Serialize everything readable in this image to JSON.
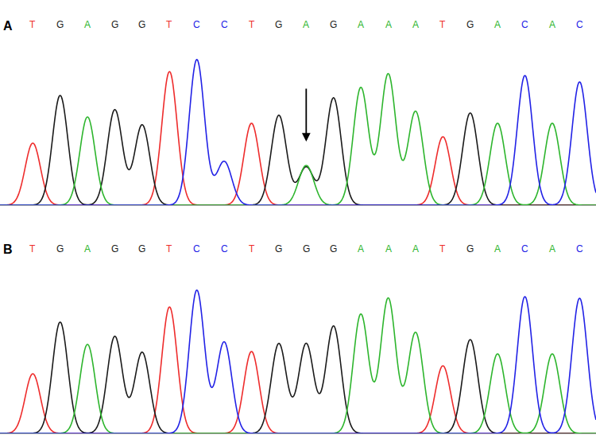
{
  "chart_data": [
    {
      "type": "line",
      "title": "A",
      "sequence": [
        "T",
        "G",
        "A",
        "G",
        "G",
        "T",
        "C",
        "C",
        "T",
        "G",
        "A",
        "G",
        "A",
        "A",
        "A",
        "T",
        "G",
        "A",
        "C",
        "A",
        "C"
      ],
      "marked_position": 11,
      "xlim": [
        -0.2,
        21.6
      ],
      "ylim": [
        0,
        200
      ],
      "tick_labels": false,
      "grid": false,
      "series": [
        {
          "name": "T",
          "color": "#ee2c2c",
          "x": [
            1,
            6,
            9,
            16
          ],
          "values": [
            78,
            168,
            103,
            86
          ]
        },
        {
          "name": "G",
          "color": "#1a1a1a",
          "x": [
            2,
            4,
            5,
            10,
            11,
            12,
            17
          ],
          "values": [
            138,
            120,
            101,
            113,
            48,
            135,
            116
          ]
        },
        {
          "name": "A",
          "color": "#2db52d",
          "x": [
            3,
            11,
            13,
            14,
            15,
            18,
            20
          ],
          "values": [
            111,
            50,
            148,
            165,
            118,
            103,
            103
          ]
        },
        {
          "name": "C",
          "color": "#2222e6",
          "x": [
            7,
            8,
            19,
            21
          ],
          "values": [
            183,
            55,
            163,
            155
          ]
        }
      ]
    },
    {
      "type": "line",
      "title": "B",
      "sequence": [
        "T",
        "G",
        "A",
        "G",
        "G",
        "T",
        "C",
        "C",
        "T",
        "G",
        "G",
        "G",
        "A",
        "A",
        "A",
        "T",
        "G",
        "A",
        "C",
        "A",
        "C"
      ],
      "xlim": [
        -0.2,
        21.6
      ],
      "ylim": [
        0,
        200
      ],
      "tick_labels": false,
      "grid": false,
      "series": [
        {
          "name": "T",
          "color": "#ee2c2c",
          "x": [
            1,
            6,
            9,
            16
          ],
          "values": [
            75,
            159,
            103,
            85
          ]
        },
        {
          "name": "G",
          "color": "#1a1a1a",
          "x": [
            2,
            4,
            5,
            10,
            11,
            12,
            17
          ],
          "values": [
            140,
            122,
            102,
            113,
            113,
            135,
            118
          ]
        },
        {
          "name": "A",
          "color": "#2db52d",
          "x": [
            3,
            13,
            14,
            15,
            18,
            20
          ],
          "values": [
            112,
            150,
            170,
            127,
            100,
            100
          ]
        },
        {
          "name": "C",
          "color": "#2222e6",
          "x": [
            7,
            8,
            19,
            21
          ],
          "values": [
            180,
            115,
            172,
            170
          ]
        }
      ]
    }
  ]
}
